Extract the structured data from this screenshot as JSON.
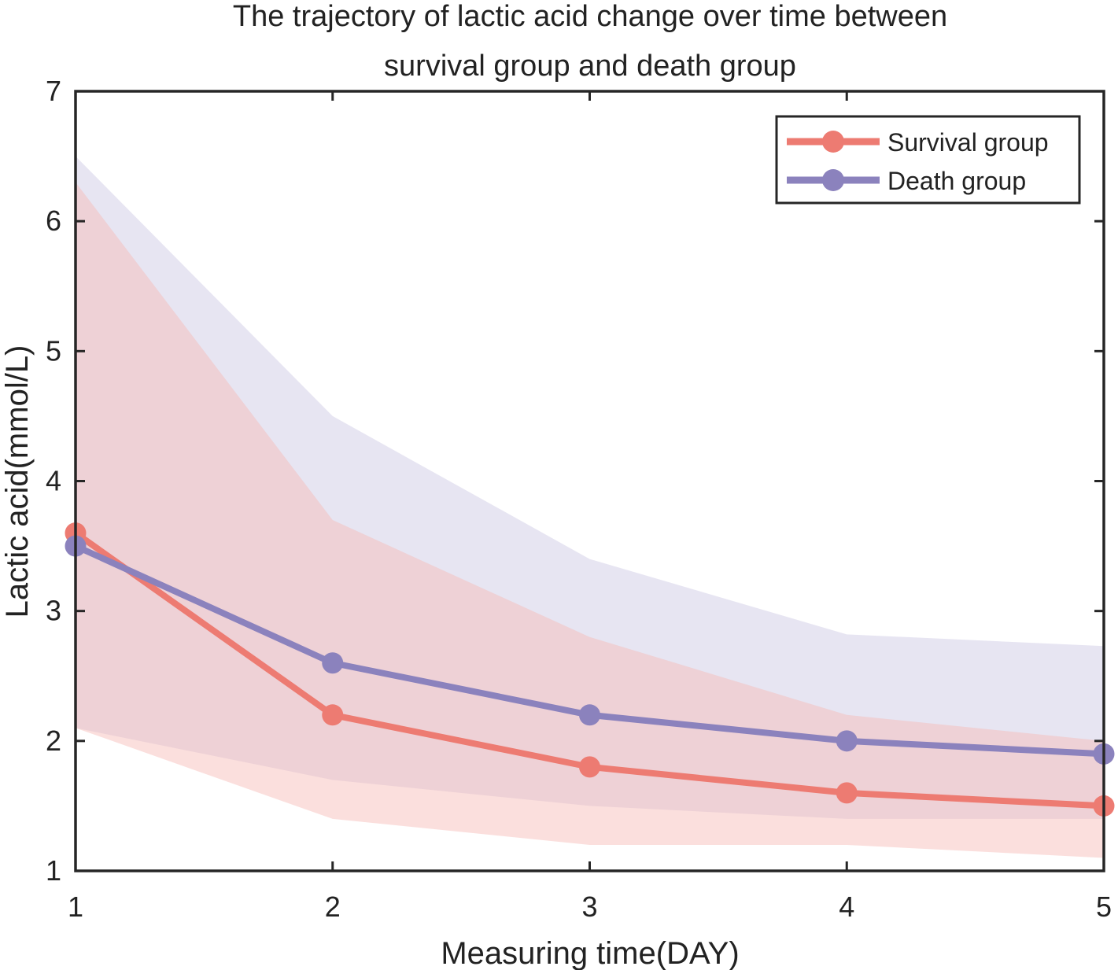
{
  "chart_data": {
    "type": "line",
    "title_lines": [
      "The trajectory of lactic acid change over time between",
      "survival group and death group"
    ],
    "xlabel": "Measuring time(DAY)",
    "ylabel": "Lactic acid(mmol/L)",
    "x": [
      1,
      2,
      3,
      4,
      5
    ],
    "xlim": [
      1,
      5
    ],
    "ylim": [
      1,
      7
    ],
    "xticks": [
      "1",
      "2",
      "3",
      "4",
      "5"
    ],
    "yticks": [
      "1",
      "2",
      "3",
      "4",
      "5",
      "6",
      "7"
    ],
    "grid": false,
    "legend_position": "top-right",
    "series": [
      {
        "name": "Survival group",
        "color": "#ed7b72",
        "band_color": "#f6b8b4",
        "values": [
          3.6,
          2.2,
          1.8,
          1.6,
          1.5
        ],
        "upper": [
          6.3,
          3.7,
          2.8,
          2.2,
          2.0
        ],
        "lower": [
          2.1,
          1.4,
          1.2,
          1.2,
          1.1
        ]
      },
      {
        "name": "Death group",
        "color": "#8b82bd",
        "band_color": "#c9c5e2",
        "values": [
          3.5,
          2.6,
          2.2,
          2.0,
          1.9
        ],
        "upper": [
          6.5,
          4.5,
          3.4,
          2.82,
          2.73
        ],
        "lower": [
          2.1,
          1.7,
          1.5,
          1.4,
          1.4
        ]
      }
    ]
  }
}
